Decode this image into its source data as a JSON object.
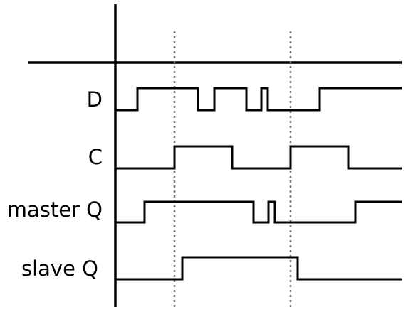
{
  "signals": [
    {
      "name": "D",
      "transitions": [
        0,
        1,
        1,
        0,
        0,
        1,
        1,
        0,
        0,
        1,
        1,
        0,
        0,
        1
      ]
    },
    {
      "name": "C",
      "transitions": [
        0,
        1,
        1,
        0,
        0,
        1,
        1,
        0
      ]
    },
    {
      "name": "master Q",
      "transitions": [
        0,
        1,
        1,
        0,
        0,
        1,
        1,
        0,
        0,
        1
      ]
    },
    {
      "name": "slave Q",
      "transitions": [
        0,
        1,
        1,
        0
      ]
    }
  ]
}
